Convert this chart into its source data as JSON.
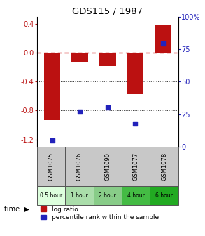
{
  "title": "GDS115 / 1987",
  "samples": [
    "GSM1075",
    "GSM1076",
    "GSM1090",
    "GSM1077",
    "GSM1078"
  ],
  "time_labels": [
    "0.5 hour",
    "1 hour",
    "2 hour",
    "4 hour",
    "6 hour"
  ],
  "time_colors": [
    "#ddffdd",
    "#aaddaa",
    "#88cc88",
    "#44bb44",
    "#22aa22"
  ],
  "log_ratios": [
    -0.93,
    -0.13,
    -0.18,
    -0.57,
    0.38
  ],
  "percentile_ranks": [
    5,
    27,
    30,
    18,
    79
  ],
  "bar_color": "#bb1111",
  "dot_color": "#2222bb",
  "ylim_left": [
    -1.3,
    0.5
  ],
  "ylim_right": [
    0,
    100
  ],
  "left_ticks": [
    0.4,
    0.0,
    -0.4,
    -0.8,
    -1.2
  ],
  "right_ticks": [
    100,
    75,
    50,
    25,
    0
  ],
  "hline_zero_color": "#cc0000",
  "hline_dotted_color": "#333333",
  "bg_color": "#ffffff",
  "legend_log_ratio": "log ratio",
  "legend_percentile": "percentile rank within the sample",
  "time_label": "time"
}
